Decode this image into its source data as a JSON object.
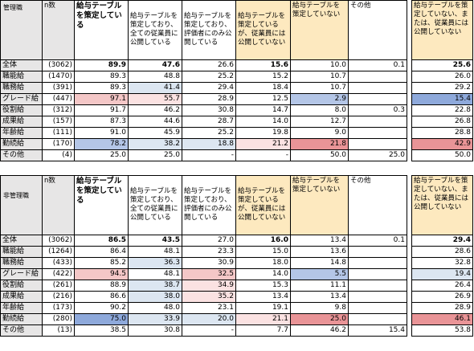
{
  "headers": {
    "n_label": "n数",
    "strong": "給与テーブルを策定している",
    "col_a": "給与テーブルを策定しており、全ての従業員に公開している",
    "col_b": "給与テーブルを策定しており、評価者にのみ公開している",
    "col_c": "給与テーブルを策定しているが、従業員には公開していない",
    "col_d": "給与テーブルを策定していない",
    "col_e": "その他",
    "col_f": "給与テーブルを策定していない、または、従業員には公開していない"
  },
  "sections": [
    {
      "corner": "管理職",
      "rows": [
        {
          "label": "全体",
          "n": "(3062)",
          "v": [
            "89.9",
            "47.6",
            "26.6",
            "15.6",
            "10.0",
            "0.1",
            "25.6"
          ],
          "total": true
        },
        {
          "label": "職能給",
          "n": "(1470)",
          "v": [
            "89.3",
            "48.8",
            "25.2",
            "15.2",
            "10.7",
            "",
            "26.0"
          ]
        },
        {
          "label": "職務給",
          "n": "(391)",
          "v": [
            "89.3",
            "41.4",
            "29.4",
            "18.4",
            "10.7",
            "",
            "29.2"
          ]
        },
        {
          "label": "グレード給",
          "n": "(447)",
          "v": [
            "97.1",
            "55.7",
            "28.9",
            "12.5",
            "2.9",
            "",
            "15.4"
          ]
        },
        {
          "label": "役割給",
          "n": "(312)",
          "v": [
            "91.7",
            "46.2",
            "30.8",
            "14.7",
            "8.0",
            "0.3",
            "22.8"
          ]
        },
        {
          "label": "成果給",
          "n": "(157)",
          "v": [
            "87.3",
            "44.6",
            "28.7",
            "14.0",
            "12.7",
            "",
            "26.8"
          ]
        },
        {
          "label": "年齢給",
          "n": "(111)",
          "v": [
            "91.0",
            "45.9",
            "25.2",
            "19.8",
            "9.0",
            "",
            "28.8"
          ]
        },
        {
          "label": "勤続給",
          "n": "(170)",
          "v": [
            "78.2",
            "38.2",
            "18.8",
            "21.2",
            "21.8",
            "",
            "42.9"
          ]
        },
        {
          "label": "その他",
          "n": "(4)",
          "v": [
            "25.0",
            "25.0",
            "-",
            "-",
            "50.0",
            "25.0",
            "50.0"
          ]
        }
      ]
    },
    {
      "corner": "非管理職",
      "rows": [
        {
          "label": "全体",
          "n": "(3062)",
          "v": [
            "86.5",
            "43.5",
            "27.0",
            "16.0",
            "13.4",
            "0.1",
            "29.4"
          ],
          "total": true
        },
        {
          "label": "職能給",
          "n": "(1264)",
          "v": [
            "86.4",
            "48.1",
            "23.3",
            "15.0",
            "13.6",
            "",
            "28.6"
          ]
        },
        {
          "label": "職務給",
          "n": "(433)",
          "v": [
            "85.2",
            "36.3",
            "30.9",
            "18.0",
            "14.8",
            "",
            "32.8"
          ]
        },
        {
          "label": "グレード給",
          "n": "(422)",
          "v": [
            "94.5",
            "48.1",
            "32.5",
            "14.0",
            "5.5",
            "",
            "19.4"
          ]
        },
        {
          "label": "役割給",
          "n": "(261)",
          "v": [
            "88.9",
            "38.7",
            "34.9",
            "15.3",
            "11.1",
            "",
            "26.4"
          ]
        },
        {
          "label": "成果給",
          "n": "(216)",
          "v": [
            "86.6",
            "38.0",
            "35.2",
            "13.4",
            "13.4",
            "",
            "26.9"
          ]
        },
        {
          "label": "年齢給",
          "n": "(173)",
          "v": [
            "90.2",
            "48.0",
            "23.1",
            "19.1",
            "9.8",
            "",
            "28.9"
          ]
        },
        {
          "label": "勤続給",
          "n": "(280)",
          "v": [
            "75.0",
            "33.9",
            "20.0",
            "21.1",
            "25.0",
            "",
            "46.1"
          ]
        },
        {
          "label": "その他",
          "n": "(13)",
          "v": [
            "38.5",
            "30.8",
            "-",
            "7.7",
            "46.2",
            "15.4",
            "53.8"
          ]
        }
      ]
    }
  ],
  "highlight_colors": {
    "blue_strong": "#8ea9db",
    "blue_mid": "#b4c6e7",
    "blue_light": "#dce6f1",
    "pink_strong": "#e99497",
    "pink_mid": "#f4c7c7",
    "pink_light": "#fbe2e2",
    "orange_header": "#fde9bf"
  }
}
